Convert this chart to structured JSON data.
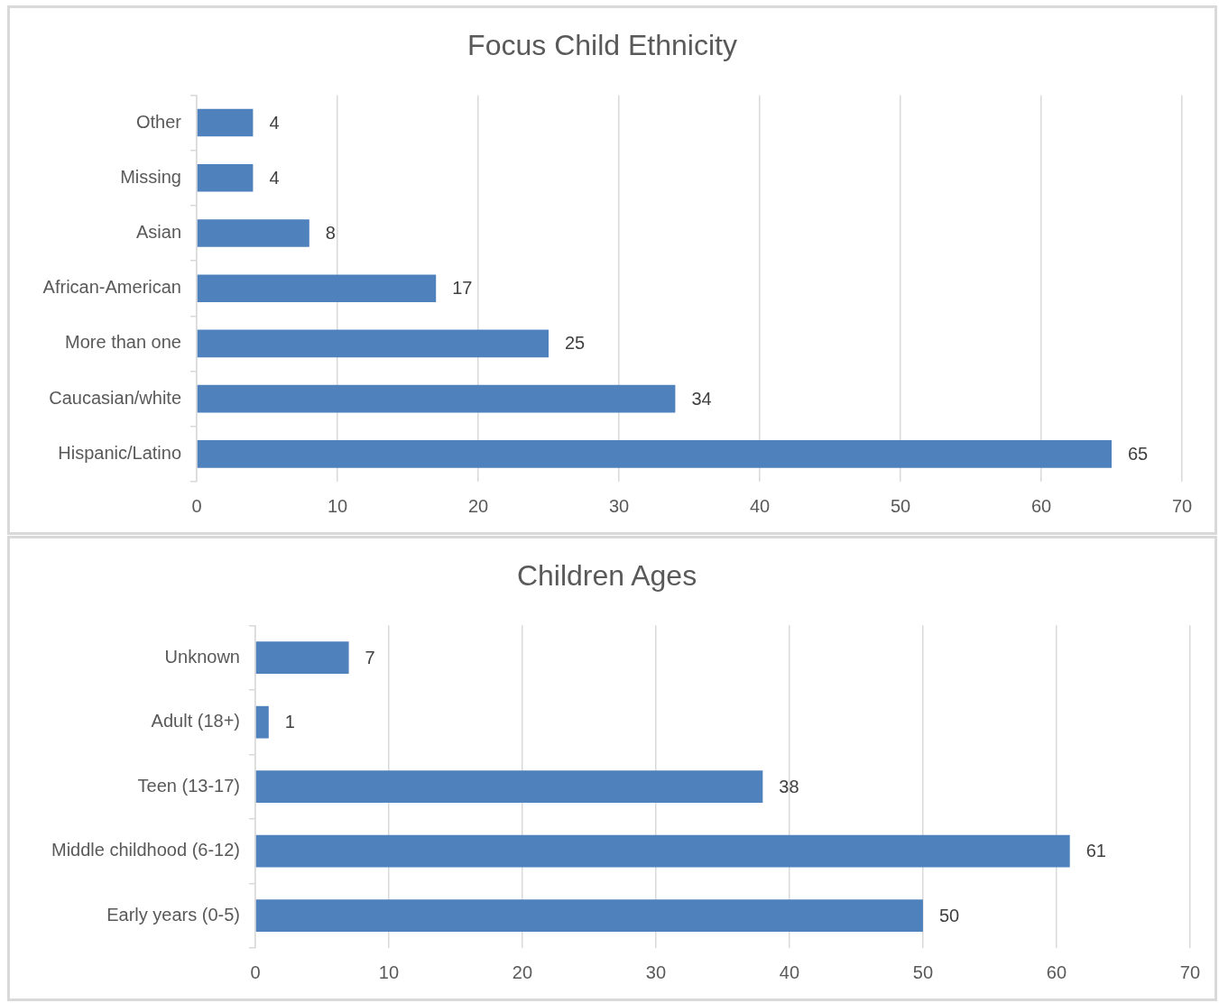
{
  "chart_data": [
    {
      "type": "bar",
      "orientation": "horizontal",
      "title": "Focus Child Ethnicity",
      "categories": [
        "Other",
        "Missing",
        "Asian",
        "African-American",
        "More than one",
        "Caucasian/white",
        "Hispanic/Latino"
      ],
      "values": [
        4,
        4,
        8,
        17,
        25,
        34,
        65
      ],
      "color": "#4f81bd",
      "xlim": [
        0,
        70
      ],
      "xticks": [
        0,
        10,
        20,
        30,
        40,
        50,
        60,
        70
      ],
      "grid": "x",
      "data_labels": true
    },
    {
      "type": "bar",
      "orientation": "horizontal",
      "title": "Children Ages",
      "categories": [
        "Unknown",
        "Adult (18+)",
        "Teen (13-17)",
        "Middle childhood (6-12)",
        "Early years (0-5)"
      ],
      "values": [
        7,
        1,
        38,
        61,
        50
      ],
      "color": "#4f81bd",
      "xlim": [
        0,
        70
      ],
      "xticks": [
        0,
        10,
        20,
        30,
        40,
        50,
        60,
        70
      ],
      "grid": "x",
      "data_labels": true
    }
  ]
}
